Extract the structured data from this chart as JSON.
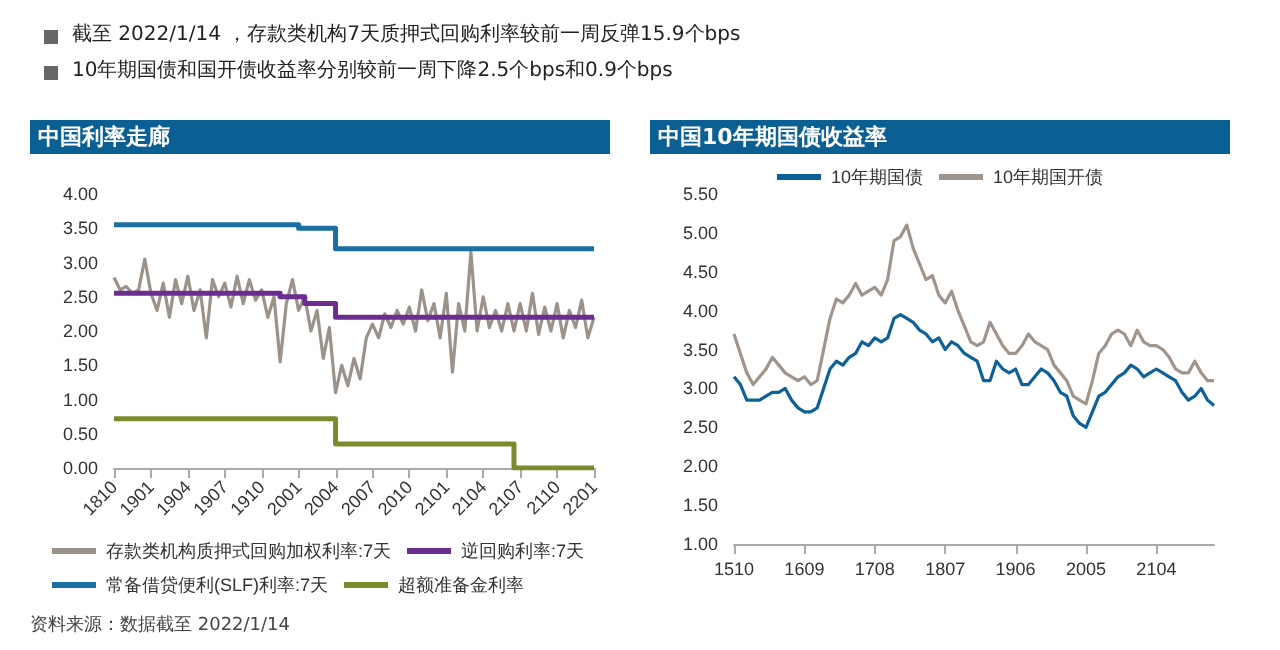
{
  "chart_data": [
    {
      "type": "line",
      "title": "中国利率走廊",
      "annotations": [
        "截至 2022/1/14 ，存款类机构7天质押式回购利率较前一周反弹15.9个bps",
        "10年期国债和国开债收益率分别较前一周下降2.5个bps和0.9个bps",
        "资料来源：数据截至 2022/1/14"
      ],
      "categories": [
        "1810",
        null,
        null,
        null,
        null,
        null,
        "1901",
        null,
        null,
        null,
        null,
        null,
        "1904",
        null,
        null,
        null,
        null,
        null,
        "1907",
        null,
        null,
        null,
        null,
        null,
        "1910",
        null,
        null,
        null,
        null,
        null,
        "2001",
        null,
        null,
        null,
        null,
        null,
        "2004",
        null,
        null,
        null,
        null,
        null,
        "2007",
        null,
        null,
        null,
        null,
        null,
        "2010",
        null,
        null,
        null,
        null,
        null,
        "2101",
        null,
        null,
        null,
        null,
        null,
        "2104",
        null,
        null,
        null,
        null,
        null,
        "2107",
        null,
        null,
        null,
        null,
        null,
        "2110",
        null,
        null,
        null,
        null,
        null,
        "2201"
      ],
      "series": [
        {
          "name": "存款类机构质押式回购加权利率:7天",
          "color": "#9b928a",
          "values": [
            2.78,
            2.6,
            2.65,
            2.55,
            2.6,
            3.05,
            2.55,
            2.3,
            2.7,
            2.2,
            2.75,
            2.4,
            2.8,
            2.3,
            2.6,
            1.9,
            2.75,
            2.5,
            2.7,
            2.35,
            2.8,
            2.4,
            2.75,
            2.45,
            2.6,
            2.2,
            2.5,
            1.55,
            2.4,
            2.75,
            2.3,
            2.5,
            2.0,
            2.3,
            1.6,
            2.05,
            1.1,
            1.5,
            1.2,
            1.6,
            1.3,
            1.9,
            2.1,
            1.9,
            2.25,
            2.05,
            2.3,
            2.1,
            2.35,
            2.0,
            2.6,
            2.15,
            2.4,
            1.9,
            2.55,
            1.4,
            2.4,
            2.0,
            3.15,
            2.0,
            2.5,
            2.05,
            2.3,
            2.0,
            2.4,
            2.0,
            2.4,
            2.0,
            2.55,
            1.95,
            2.35,
            2.0,
            2.4,
            1.9,
            2.3,
            2.05,
            2.45,
            1.9,
            2.2
          ]
        },
        {
          "name": "逆回购利率:7天",
          "type": "step",
          "color": "#6b2d8f",
          "values": [
            2.55,
            2.55,
            2.55,
            2.55,
            2.55,
            2.55,
            2.55,
            2.55,
            2.55,
            2.55,
            2.55,
            2.55,
            2.55,
            2.55,
            2.55,
            2.55,
            2.55,
            2.55,
            2.55,
            2.55,
            2.55,
            2.55,
            2.55,
            2.55,
            2.55,
            2.55,
            2.55,
            2.5,
            2.5,
            2.5,
            2.5,
            2.4,
            2.4,
            2.4,
            2.4,
            2.4,
            2.2,
            2.2,
            2.2,
            2.2,
            2.2,
            2.2,
            2.2,
            2.2,
            2.2,
            2.2,
            2.2,
            2.2,
            2.2,
            2.2,
            2.2,
            2.2,
            2.2,
            2.2,
            2.2,
            2.2,
            2.2,
            2.2,
            2.2,
            2.2,
            2.2,
            2.2,
            2.2,
            2.2,
            2.2,
            2.2,
            2.2,
            2.2,
            2.2,
            2.2,
            2.2,
            2.2,
            2.2,
            2.2,
            2.2,
            2.2,
            2.2,
            2.2,
            2.2
          ]
        },
        {
          "name": "常备借贷便利(SLF)利率:7天",
          "type": "step",
          "color": "#1b6fa3",
          "values": [
            3.55,
            3.55,
            3.55,
            3.55,
            3.55,
            3.55,
            3.55,
            3.55,
            3.55,
            3.55,
            3.55,
            3.55,
            3.55,
            3.55,
            3.55,
            3.55,
            3.55,
            3.55,
            3.55,
            3.55,
            3.55,
            3.55,
            3.55,
            3.55,
            3.55,
            3.55,
            3.55,
            3.55,
            3.55,
            3.55,
            3.5,
            3.5,
            3.5,
            3.5,
            3.5,
            3.5,
            3.2,
            3.2,
            3.2,
            3.2,
            3.2,
            3.2,
            3.2,
            3.2,
            3.2,
            3.2,
            3.2,
            3.2,
            3.2,
            3.2,
            3.2,
            3.2,
            3.2,
            3.2,
            3.2,
            3.2,
            3.2,
            3.2,
            3.2,
            3.2,
            3.2,
            3.2,
            3.2,
            3.2,
            3.2,
            3.2,
            3.2,
            3.2,
            3.2,
            3.2,
            3.2,
            3.2,
            3.2,
            3.2,
            3.2,
            3.2,
            3.2,
            3.2,
            3.2
          ]
        },
        {
          "name": "超额准备金利率",
          "type": "step",
          "color": "#7b8a2c",
          "values": [
            0.72,
            0.72,
            0.72,
            0.72,
            0.72,
            0.72,
            0.72,
            0.72,
            0.72,
            0.72,
            0.72,
            0.72,
            0.72,
            0.72,
            0.72,
            0.72,
            0.72,
            0.72,
            0.72,
            0.72,
            0.72,
            0.72,
            0.72,
            0.72,
            0.72,
            0.72,
            0.72,
            0.72,
            0.72,
            0.72,
            0.72,
            0.72,
            0.72,
            0.72,
            0.72,
            0.72,
            0.35,
            0.35,
            0.35,
            0.35,
            0.35,
            0.35,
            0.35,
            0.35,
            0.35,
            0.35,
            0.35,
            0.35,
            0.35,
            0.35,
            0.35,
            0.35,
            0.35,
            0.35,
            0.35,
            0.35,
            0.35,
            0.35,
            0.35,
            0.35,
            0.35,
            0.35,
            0.35,
            0.35,
            0.35,
            0,
            0,
            0,
            0,
            0,
            0,
            0,
            0,
            0,
            0,
            0,
            0,
            0,
            0
          ]
        }
      ],
      "ylim": [
        0,
        4
      ],
      "yticks": [
        {
          "value": 0,
          "label": "0.00"
        },
        {
          "value": 0.5,
          "label": "0.50"
        },
        {
          "value": 1,
          "label": "1.00"
        },
        {
          "value": 1.5,
          "label": "1.50"
        },
        {
          "value": 2,
          "label": "2.00"
        },
        {
          "value": 2.5,
          "label": "2.50"
        },
        {
          "value": 3,
          "label": "3.00"
        },
        {
          "value": 3.5,
          "label": "3.50"
        },
        {
          "value": 4,
          "label": "4.00"
        }
      ],
      "legend": "bottom",
      "marker": "none"
    },
    {
      "type": "line",
      "title": "中国10年期国债收益率",
      "categories": [
        "1510",
        null,
        null,
        null,
        null,
        null,
        null,
        null,
        null,
        null,
        null,
        "1609",
        null,
        null,
        null,
        null,
        null,
        null,
        null,
        null,
        null,
        null,
        "1708",
        null,
        null,
        null,
        null,
        null,
        null,
        null,
        null,
        null,
        null,
        "1807",
        null,
        null,
        null,
        null,
        null,
        null,
        null,
        null,
        null,
        null,
        "1906",
        null,
        null,
        null,
        null,
        null,
        null,
        null,
        null,
        null,
        null,
        "2005",
        null,
        null,
        null,
        null,
        null,
        null,
        null,
        null,
        null,
        null,
        "2104",
        null,
        null,
        null,
        null,
        null,
        null,
        null,
        null,
        null
      ],
      "series": [
        {
          "name": "10年期国债",
          "color": "#0e6196",
          "values": [
            3.15,
            3.05,
            2.85,
            2.85,
            2.85,
            2.9,
            2.95,
            2.95,
            3.0,
            2.85,
            2.75,
            2.7,
            2.7,
            2.75,
            3.0,
            3.25,
            3.35,
            3.3,
            3.4,
            3.45,
            3.6,
            3.55,
            3.65,
            3.6,
            3.65,
            3.9,
            3.95,
            3.9,
            3.85,
            3.75,
            3.7,
            3.6,
            3.65,
            3.5,
            3.6,
            3.55,
            3.45,
            3.4,
            3.35,
            3.1,
            3.1,
            3.35,
            3.25,
            3.2,
            3.25,
            3.05,
            3.05,
            3.15,
            3.25,
            3.2,
            3.1,
            2.95,
            2.9,
            2.65,
            2.55,
            2.5,
            2.7,
            2.9,
            2.95,
            3.05,
            3.15,
            3.2,
            3.3,
            3.25,
            3.15,
            3.2,
            3.25,
            3.2,
            3.15,
            3.1,
            2.95,
            2.85,
            2.9,
            3.0,
            2.85,
            2.78
          ]
        },
        {
          "name": "10年期国开债",
          "color": "#a0958c",
          "values": [
            3.7,
            3.45,
            3.2,
            3.05,
            3.15,
            3.25,
            3.4,
            3.3,
            3.2,
            3.15,
            3.1,
            3.15,
            3.05,
            3.1,
            3.5,
            3.9,
            4.15,
            4.1,
            4.2,
            4.35,
            4.2,
            4.25,
            4.3,
            4.2,
            4.4,
            4.9,
            4.95,
            5.1,
            4.8,
            4.6,
            4.4,
            4.45,
            4.2,
            4.1,
            4.25,
            4.0,
            3.8,
            3.6,
            3.55,
            3.6,
            3.85,
            3.7,
            3.55,
            3.45,
            3.45,
            3.55,
            3.7,
            3.6,
            3.55,
            3.5,
            3.3,
            3.2,
            3.1,
            2.9,
            2.85,
            2.8,
            3.1,
            3.45,
            3.55,
            3.7,
            3.75,
            3.7,
            3.55,
            3.75,
            3.6,
            3.55,
            3.55,
            3.5,
            3.4,
            3.25,
            3.2,
            3.2,
            3.35,
            3.2,
            3.1,
            3.1
          ]
        }
      ],
      "ylim": [
        1,
        5.5
      ],
      "yticks": [
        {
          "value": 1,
          "label": "1.00"
        },
        {
          "value": 1.5,
          "label": "1.50"
        },
        {
          "value": 2,
          "label": "2.00"
        },
        {
          "value": 2.5,
          "label": "2.50"
        },
        {
          "value": 3,
          "label": "3.00"
        },
        {
          "value": 3.5,
          "label": "3.50"
        },
        {
          "value": 4,
          "label": "4.00"
        },
        {
          "value": 4.5,
          "label": "4.50"
        },
        {
          "value": 5,
          "label": "5.00"
        },
        {
          "value": 5.5,
          "label": "5.50"
        }
      ],
      "legend": "top",
      "marker": "none"
    }
  ]
}
